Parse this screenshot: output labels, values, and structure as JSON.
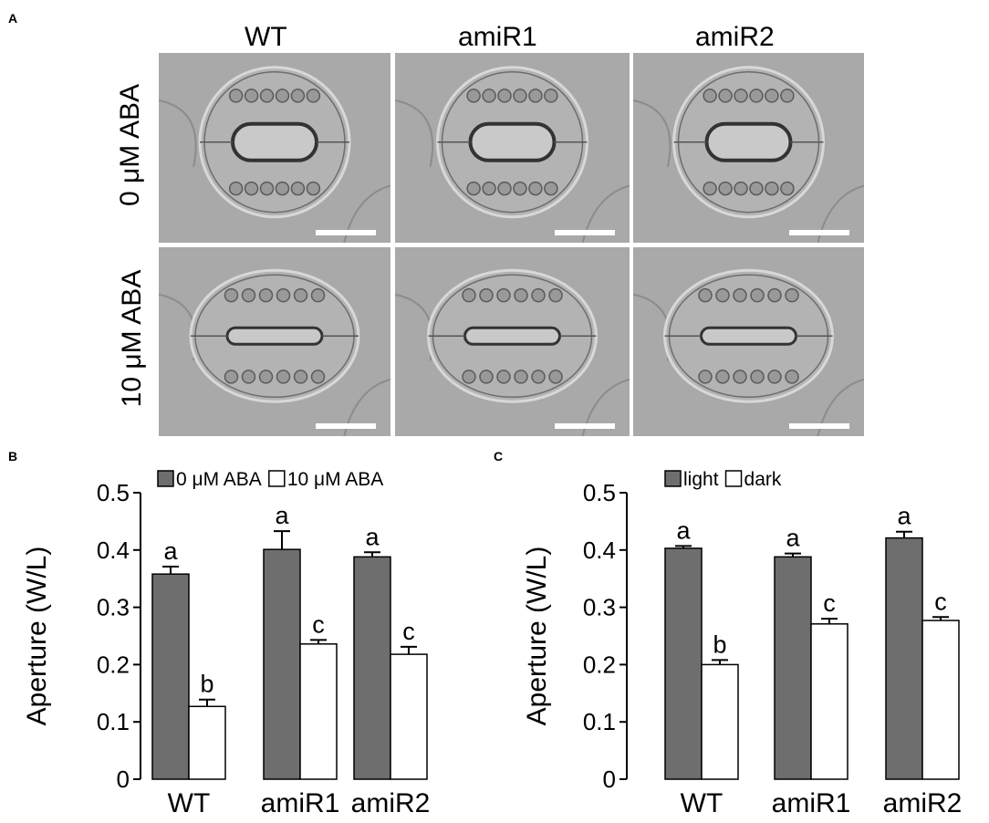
{
  "panels": {
    "a": {
      "letter": "A",
      "columns": [
        "WT",
        "amiR1",
        "amiR2"
      ],
      "rows": [
        "0 μM ABA",
        "10 μM ABA"
      ]
    },
    "b": {
      "letter": "B"
    },
    "c": {
      "letter": "C"
    }
  },
  "chart_data": [
    {
      "type": "bar",
      "panel": "B",
      "categories": [
        "WT",
        "amiR1",
        "amiR2"
      ],
      "series": [
        {
          "name": "0 μM ABA",
          "values": [
            0.358,
            0.401,
            0.388
          ],
          "errors": [
            0.013,
            0.032,
            0.008
          ],
          "letters": [
            "a",
            "a",
            "a"
          ],
          "color": "#6e6e6e"
        },
        {
          "name": "10 μM ABA",
          "values": [
            0.127,
            0.236,
            0.218
          ],
          "errors": [
            0.012,
            0.007,
            0.013
          ],
          "letters": [
            "b",
            "c",
            "c"
          ],
          "color": "#ffffff"
        }
      ],
      "ylabel": "Aperture (W/L)",
      "yticks": [
        "0",
        "0.1",
        "0.2",
        "0.3",
        "0.4",
        "0.5"
      ],
      "ylim": [
        0,
        0.5
      ],
      "legend": "top"
    },
    {
      "type": "bar",
      "panel": "C",
      "categories": [
        "WT",
        "amiR1",
        "amiR2"
      ],
      "series": [
        {
          "name": "light",
          "values": [
            0.403,
            0.388,
            0.421
          ],
          "errors": [
            0.004,
            0.006,
            0.011
          ],
          "letters": [
            "a",
            "a",
            "a"
          ],
          "color": "#6e6e6e"
        },
        {
          "name": "dark",
          "values": [
            0.2,
            0.271,
            0.277
          ],
          "errors": [
            0.008,
            0.009,
            0.006
          ],
          "letters": [
            "b",
            "c",
            "c"
          ],
          "color": "#ffffff"
        }
      ],
      "ylabel": "Aperture (W/L)",
      "yticks": [
        "0",
        "0.1",
        "0.2",
        "0.3",
        "0.4",
        "0.5"
      ],
      "ylim": [
        0,
        0.5
      ],
      "legend": "top"
    }
  ]
}
